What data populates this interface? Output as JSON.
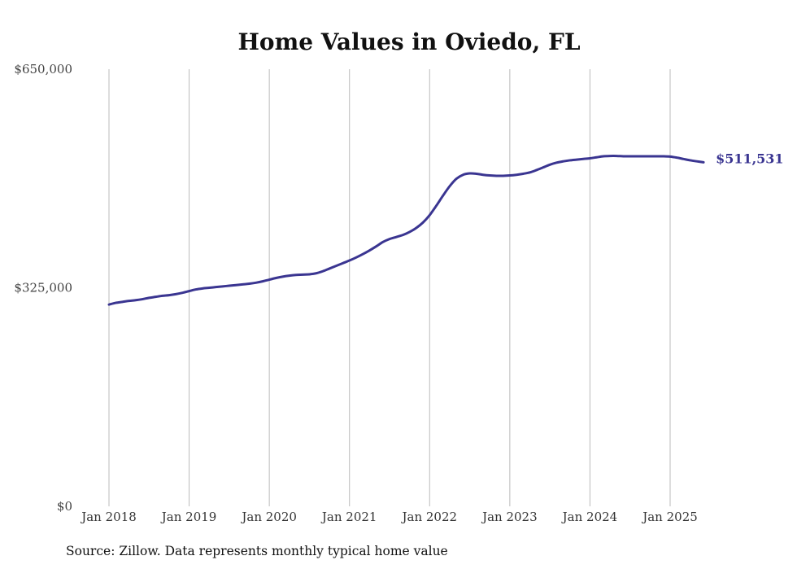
{
  "chart_data": {
    "type": "line",
    "title": "Home Values in Oviedo, FL",
    "xlabel": "",
    "ylabel": "",
    "ylim": [
      0,
      650000
    ],
    "y_ticks": [
      {
        "value": 0,
        "label": "$0"
      },
      {
        "value": 325000,
        "label": "$325,000"
      },
      {
        "value": 650000,
        "label": "$650,000"
      }
    ],
    "x_ticks": [
      "Jan 2018",
      "Jan 2019",
      "Jan 2020",
      "Jan 2021",
      "Jan 2022",
      "Jan 2023",
      "Jan 2024",
      "Jan 2025"
    ],
    "grid": "vertical",
    "line_color": "#3a3591",
    "series": [
      {
        "points": [
          [
            "2018-01",
            300000
          ],
          [
            "2018-02",
            302500
          ],
          [
            "2018-03",
            304000
          ],
          [
            "2018-04",
            305500
          ],
          [
            "2018-05",
            306500
          ],
          [
            "2018-06",
            308000
          ],
          [
            "2018-07",
            310000
          ],
          [
            "2018-08",
            311500
          ],
          [
            "2018-09",
            313000
          ],
          [
            "2018-10",
            314000
          ],
          [
            "2018-11",
            315500
          ],
          [
            "2018-12",
            317500
          ],
          [
            "2019-01",
            320000
          ],
          [
            "2019-02",
            322500
          ],
          [
            "2019-03",
            324000
          ],
          [
            "2019-04",
            325000
          ],
          [
            "2019-05",
            326000
          ],
          [
            "2019-06",
            327000
          ],
          [
            "2019-07",
            328000
          ],
          [
            "2019-08",
            329000
          ],
          [
            "2019-09",
            330000
          ],
          [
            "2019-10",
            331000
          ],
          [
            "2019-11",
            332500
          ],
          [
            "2019-12",
            334500
          ],
          [
            "2020-01",
            337000
          ],
          [
            "2020-02",
            339500
          ],
          [
            "2020-03",
            341500
          ],
          [
            "2020-04",
            343000
          ],
          [
            "2020-05",
            344000
          ],
          [
            "2020-06",
            344500
          ],
          [
            "2020-07",
            345000
          ],
          [
            "2020-08",
            346500
          ],
          [
            "2020-09",
            349500
          ],
          [
            "2020-10",
            353500
          ],
          [
            "2020-11",
            357500
          ],
          [
            "2020-12",
            361500
          ],
          [
            "2021-01",
            365500
          ],
          [
            "2021-02",
            370000
          ],
          [
            "2021-03",
            375000
          ],
          [
            "2021-04",
            380500
          ],
          [
            "2021-05",
            386500
          ],
          [
            "2021-06",
            393000
          ],
          [
            "2021-07",
            397500
          ],
          [
            "2021-08",
            400500
          ],
          [
            "2021-09",
            403500
          ],
          [
            "2021-10",
            408000
          ],
          [
            "2021-11",
            414000
          ],
          [
            "2021-12",
            422000
          ],
          [
            "2022-01",
            433000
          ],
          [
            "2022-02",
            447000
          ],
          [
            "2022-03",
            462000
          ],
          [
            "2022-04",
            476000
          ],
          [
            "2022-05",
            487000
          ],
          [
            "2022-06",
            493000
          ],
          [
            "2022-07",
            495000
          ],
          [
            "2022-08",
            494500
          ],
          [
            "2022-09",
            493000
          ],
          [
            "2022-10",
            492000
          ],
          [
            "2022-11",
            491500
          ],
          [
            "2022-12",
            491500
          ],
          [
            "2023-01",
            492000
          ],
          [
            "2023-02",
            493000
          ],
          [
            "2023-03",
            494500
          ],
          [
            "2023-04",
            496500
          ],
          [
            "2023-05",
            500000
          ],
          [
            "2023-06",
            504000
          ],
          [
            "2023-07",
            508000
          ],
          [
            "2023-08",
            511000
          ],
          [
            "2023-09",
            513000
          ],
          [
            "2023-10",
            514500
          ],
          [
            "2023-11",
            515500
          ],
          [
            "2023-12",
            516500
          ],
          [
            "2024-01",
            517500
          ],
          [
            "2024-02",
            519000
          ],
          [
            "2024-03",
            520500
          ],
          [
            "2024-04",
            521000
          ],
          [
            "2024-05",
            521000
          ],
          [
            "2024-06",
            520500
          ],
          [
            "2024-07",
            520500
          ],
          [
            "2024-08",
            520500
          ],
          [
            "2024-09",
            520500
          ],
          [
            "2024-10",
            520500
          ],
          [
            "2024-11",
            520500
          ],
          [
            "2024-12",
            520500
          ],
          [
            "2025-01",
            520000
          ],
          [
            "2025-02",
            518500
          ],
          [
            "2025-03",
            516500
          ],
          [
            "2025-04",
            514500
          ],
          [
            "2025-05",
            513000
          ],
          [
            "2025-06",
            511531
          ]
        ]
      }
    ],
    "end_label": "$511,531"
  },
  "footer": {
    "source": "Source: Zillow. Data represents monthly typical home value"
  }
}
